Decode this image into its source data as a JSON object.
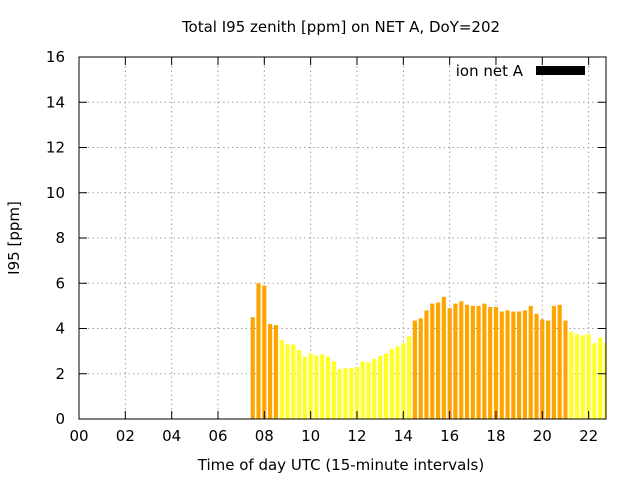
{
  "chart_data": {
    "type": "bar",
    "title": "Total I95 zenith [ppm] on NET A, DoY=202",
    "xlabel": "Time of day UTC (15-minute intervals)",
    "ylabel": "I95 [ppm]",
    "xlim": [
      0,
      22.75
    ],
    "ylim": [
      0,
      16
    ],
    "x_ticks": [
      "00",
      "02",
      "04",
      "06",
      "08",
      "10",
      "12",
      "14",
      "16",
      "18",
      "20",
      "22"
    ],
    "x_tick_values": [
      0,
      2,
      4,
      6,
      8,
      10,
      12,
      14,
      16,
      18,
      20,
      22
    ],
    "y_ticks": [
      0,
      2,
      4,
      6,
      8,
      10,
      12,
      14,
      16
    ],
    "grid": true,
    "legend": {
      "label": "ion net A",
      "color": "#000000",
      "position": "top-right"
    },
    "colors": {
      "high": "#ffa500",
      "low": "#ffff26",
      "legend": "#000000"
    },
    "bar_width_hours": 0.18,
    "series": [
      {
        "values": [
          {
            "x": 7.5,
            "y": 4.5,
            "level": "high"
          },
          {
            "x": 7.75,
            "y": 6.0,
            "level": "high"
          },
          {
            "x": 8.0,
            "y": 5.9,
            "level": "high"
          },
          {
            "x": 8.25,
            "y": 4.2,
            "level": "high"
          },
          {
            "x": 8.5,
            "y": 4.15,
            "level": "high"
          },
          {
            "x": 8.75,
            "y": 3.5,
            "level": "low"
          },
          {
            "x": 9.0,
            "y": 3.3,
            "level": "low"
          },
          {
            "x": 9.25,
            "y": 3.3,
            "level": "low"
          },
          {
            "x": 9.5,
            "y": 3.05,
            "level": "low"
          },
          {
            "x": 9.75,
            "y": 2.75,
            "level": "low"
          },
          {
            "x": 10.0,
            "y": 2.9,
            "level": "low"
          },
          {
            "x": 10.25,
            "y": 2.8,
            "level": "low"
          },
          {
            "x": 10.5,
            "y": 2.85,
            "level": "low"
          },
          {
            "x": 10.75,
            "y": 2.75,
            "level": "low"
          },
          {
            "x": 11.0,
            "y": 2.55,
            "level": "low"
          },
          {
            "x": 11.25,
            "y": 2.2,
            "level": "low"
          },
          {
            "x": 11.5,
            "y": 2.25,
            "level": "low"
          },
          {
            "x": 11.75,
            "y": 2.25,
            "level": "low"
          },
          {
            "x": 12.0,
            "y": 2.3,
            "level": "low"
          },
          {
            "x": 12.25,
            "y": 2.55,
            "level": "low"
          },
          {
            "x": 12.5,
            "y": 2.5,
            "level": "low"
          },
          {
            "x": 12.75,
            "y": 2.65,
            "level": "low"
          },
          {
            "x": 13.0,
            "y": 2.8,
            "level": "low"
          },
          {
            "x": 13.25,
            "y": 2.9,
            "level": "low"
          },
          {
            "x": 13.5,
            "y": 3.1,
            "level": "low"
          },
          {
            "x": 13.75,
            "y": 3.2,
            "level": "low"
          },
          {
            "x": 14.0,
            "y": 3.35,
            "level": "low"
          },
          {
            "x": 14.25,
            "y": 3.65,
            "level": "low"
          },
          {
            "x": 14.5,
            "y": 4.35,
            "level": "high"
          },
          {
            "x": 14.75,
            "y": 4.45,
            "level": "high"
          },
          {
            "x": 15.0,
            "y": 4.8,
            "level": "high"
          },
          {
            "x": 15.25,
            "y": 5.1,
            "level": "high"
          },
          {
            "x": 15.5,
            "y": 5.15,
            "level": "high"
          },
          {
            "x": 15.75,
            "y": 5.4,
            "level": "high"
          },
          {
            "x": 16.0,
            "y": 4.9,
            "level": "high"
          },
          {
            "x": 16.25,
            "y": 5.1,
            "level": "high"
          },
          {
            "x": 16.5,
            "y": 5.2,
            "level": "high"
          },
          {
            "x": 16.75,
            "y": 5.05,
            "level": "high"
          },
          {
            "x": 17.0,
            "y": 5.0,
            "level": "high"
          },
          {
            "x": 17.25,
            "y": 5.0,
            "level": "high"
          },
          {
            "x": 17.5,
            "y": 5.1,
            "level": "high"
          },
          {
            "x": 17.75,
            "y": 4.95,
            "level": "high"
          },
          {
            "x": 18.0,
            "y": 4.95,
            "level": "high"
          },
          {
            "x": 18.25,
            "y": 4.75,
            "level": "high"
          },
          {
            "x": 18.5,
            "y": 4.8,
            "level": "high"
          },
          {
            "x": 18.75,
            "y": 4.75,
            "level": "high"
          },
          {
            "x": 19.0,
            "y": 4.75,
            "level": "high"
          },
          {
            "x": 19.25,
            "y": 4.8,
            "level": "high"
          },
          {
            "x": 19.5,
            "y": 5.0,
            "level": "high"
          },
          {
            "x": 19.75,
            "y": 4.65,
            "level": "high"
          },
          {
            "x": 20.0,
            "y": 4.4,
            "level": "high"
          },
          {
            "x": 20.25,
            "y": 4.35,
            "level": "high"
          },
          {
            "x": 20.5,
            "y": 5.0,
            "level": "high"
          },
          {
            "x": 20.75,
            "y": 5.05,
            "level": "high"
          },
          {
            "x": 21.0,
            "y": 4.35,
            "level": "high"
          },
          {
            "x": 21.25,
            "y": 3.85,
            "level": "low"
          },
          {
            "x": 21.5,
            "y": 3.75,
            "level": "low"
          },
          {
            "x": 21.75,
            "y": 3.7,
            "level": "low"
          },
          {
            "x": 22.0,
            "y": 3.75,
            "level": "low"
          },
          {
            "x": 22.25,
            "y": 3.35,
            "level": "low"
          },
          {
            "x": 22.5,
            "y": 3.6,
            "level": "low"
          },
          {
            "x": 22.75,
            "y": 3.35,
            "level": "low"
          }
        ]
      }
    ]
  }
}
